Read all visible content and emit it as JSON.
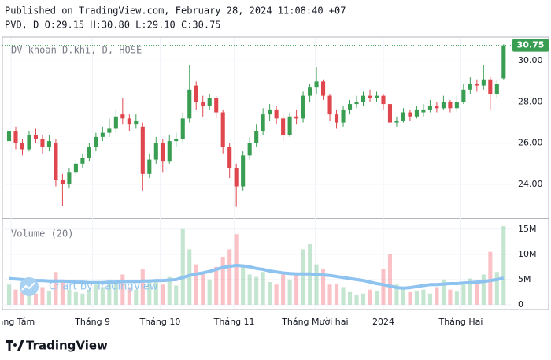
{
  "chart_data": {
    "type": "candlestick",
    "title": "Published on TradingView.com, February 28, 2024 11:08:40 +07",
    "subtitle": "PVD, D O:29.15 H:30.80 L:29.10 C:30.75",
    "legend_label": "DV khoan D.khi, D, HOSE",
    "volume_label": "Volume (20)",
    "watermark": "Chart by TradingView",
    "brand": "TradingView",
    "up_color": "#3a9e52",
    "down_color": "#e0464d",
    "volume_up_color": "rgba(58,170,100,0.3)",
    "volume_down_color": "rgba(240,80,95,0.35)",
    "ma_color": "#8ec3f0",
    "grid": true,
    "open": [
      26.1,
      26.6,
      26.0,
      25.7,
      26.4,
      26.2,
      25.8,
      26.0,
      24.2,
      24.0,
      24.6,
      25.0,
      25.3,
      25.8,
      26.3,
      26.5,
      26.7,
      27.4,
      27.2,
      26.9,
      26.8,
      24.5,
      25.2,
      26.0,
      25.1,
      26.1,
      26.2,
      27.2,
      28.8,
      28.0,
      27.8,
      28.2,
      27.5,
      25.8,
      24.8,
      23.9,
      25.4,
      26.0,
      26.6,
      27.4,
      27.6,
      27.2,
      26.4,
      27.3,
      27.2,
      28.3,
      28.7,
      29.0,
      28.3,
      27.4,
      27.0,
      27.6,
      27.9,
      28.0,
      28.3,
      28.2,
      28.3,
      27.9,
      27.0,
      27.1,
      27.5,
      27.3,
      27.5,
      27.6,
      27.8,
      27.7,
      28.0,
      27.7,
      28.0,
      28.6,
      28.9,
      28.8,
      29.1,
      28.4,
      29.15
    ],
    "high": [
      26.9,
      26.8,
      26.2,
      26.6,
      26.7,
      26.4,
      26.4,
      26.2,
      24.5,
      24.8,
      25.2,
      25.5,
      26.0,
      26.5,
      26.8,
      27.2,
      27.6,
      28.2,
      27.4,
      27.4,
      27.0,
      25.5,
      26.3,
      26.2,
      26.4,
      26.5,
      27.5,
      29.8,
      29.0,
      28.3,
      28.4,
      28.3,
      27.6,
      26.0,
      25.0,
      25.6,
      26.3,
      26.9,
      27.7,
      27.9,
      27.8,
      27.4,
      27.5,
      27.6,
      28.5,
      28.9,
      29.7,
      29.1,
      28.4,
      27.6,
      27.8,
      28.1,
      28.3,
      28.5,
      28.6,
      28.5,
      28.4,
      27.9,
      27.3,
      27.7,
      27.6,
      27.8,
      27.9,
      28.1,
      28.0,
      28.3,
      28.1,
      28.3,
      28.9,
      29.2,
      29.1,
      29.8,
      29.2,
      29.1,
      30.8
    ],
    "low": [
      25.9,
      25.7,
      25.4,
      25.6,
      26.0,
      25.5,
      25.6,
      23.9,
      22.95,
      23.8,
      24.4,
      24.8,
      25.1,
      25.6,
      26.1,
      26.3,
      26.5,
      26.9,
      26.6,
      26.7,
      23.7,
      24.3,
      25.0,
      24.6,
      25.0,
      25.8,
      26.0,
      27.0,
      27.6,
      27.3,
      27.6,
      27.2,
      25.5,
      24.3,
      22.9,
      23.7,
      25.2,
      25.8,
      26.4,
      27.1,
      26.9,
      26.1,
      26.3,
      26.9,
      27.0,
      28.0,
      28.4,
      28.1,
      27.1,
      26.7,
      26.8,
      27.4,
      27.7,
      27.8,
      28.0,
      28.0,
      27.6,
      26.6,
      26.8,
      27.0,
      27.1,
      27.2,
      27.3,
      27.5,
      27.5,
      27.6,
      27.5,
      27.5,
      27.9,
      28.4,
      28.5,
      28.6,
      27.6,
      28.2,
      29.1
    ],
    "close": [
      26.6,
      26.0,
      25.7,
      26.4,
      26.2,
      25.8,
      26.1,
      24.2,
      24.0,
      24.6,
      25.0,
      25.3,
      25.8,
      26.3,
      26.5,
      26.7,
      27.3,
      27.2,
      26.9,
      27.1,
      24.5,
      25.2,
      26.0,
      25.1,
      26.1,
      26.2,
      27.2,
      28.6,
      28.0,
      27.8,
      28.2,
      27.5,
      25.8,
      24.8,
      23.9,
      25.4,
      26.0,
      26.6,
      27.4,
      27.6,
      27.2,
      26.4,
      27.3,
      27.2,
      28.3,
      28.7,
      29.0,
      28.3,
      27.4,
      27.0,
      27.6,
      27.9,
      28.0,
      28.3,
      28.2,
      28.3,
      27.9,
      27.0,
      27.1,
      27.5,
      27.3,
      27.6,
      27.6,
      27.8,
      27.7,
      28.0,
      27.7,
      28.0,
      28.6,
      28.9,
      28.8,
      29.1,
      28.4,
      28.9,
      30.75
    ],
    "volume": [
      4,
      3,
      2.5,
      3,
      2.2,
      3.5,
      2.8,
      6.5,
      5,
      3,
      2.5,
      2.2,
      3,
      4,
      3.5,
      5,
      4.2,
      6,
      3.5,
      3,
      7,
      5,
      4.5,
      4,
      5.5,
      3.8,
      15,
      11,
      8,
      6,
      5,
      7.5,
      9.5,
      11,
      14,
      8,
      6,
      5.5,
      6.5,
      4.5,
      4,
      6,
      5,
      6.2,
      11,
      12,
      8,
      7,
      4,
      4.2,
      3.5,
      2.5,
      2,
      2.2,
      3,
      2.8,
      7,
      10,
      4,
      3.2,
      2.5,
      2.8,
      3,
      2.2,
      3.5,
      5,
      3,
      2.6,
      4,
      5.2,
      4.2,
      6,
      10.5,
      6.5,
      15.6
    ],
    "volume_ma": [
      5.2,
      5.1,
      5.0,
      4.9,
      4.8,
      4.8,
      4.7,
      4.7,
      4.7,
      4.6,
      4.5,
      4.5,
      4.4,
      4.4,
      4.4,
      4.5,
      4.5,
      4.6,
      4.6,
      4.6,
      4.7,
      4.7,
      4.8,
      4.8,
      4.9,
      5.0,
      5.4,
      5.8,
      6.1,
      6.3,
      6.6,
      7.0,
      7.4,
      7.6,
      7.8,
      7.7,
      7.5,
      7.2,
      7.0,
      6.7,
      6.5,
      6.3,
      6.2,
      6.1,
      6.1,
      6.1,
      6.0,
      5.9,
      5.8,
      5.6,
      5.4,
      5.2,
      5.0,
      4.8,
      4.5,
      4.2,
      4.0,
      3.7,
      3.4,
      3.3,
      3.4,
      3.6,
      3.8,
      4.0,
      4.0,
      4.1,
      4.2,
      4.2,
      4.3,
      4.4,
      4.5,
      4.6,
      4.8,
      5.0,
      5.3
    ],
    "xlim": [
      -1,
      75.2
    ],
    "xticks": [
      {
        "value": 0.3,
        "label": "Tháng Tám"
      },
      {
        "value": 12.5,
        "label": "Tháng 9"
      },
      {
        "value": 22.6,
        "label": "Tháng 10"
      },
      {
        "value": 33.7,
        "label": "Tháng 11"
      },
      {
        "value": 45.8,
        "label": "Tháng Mười hai"
      },
      {
        "value": 56.0,
        "label": "2024"
      },
      {
        "value": 67.6,
        "label": "Tháng Hai"
      }
    ],
    "ylim": [
      22.35,
      31.12
    ],
    "yticks": [
      {
        "value": 24,
        "label": "24.00"
      },
      {
        "value": 26,
        "label": "26.00"
      },
      {
        "value": 28,
        "label": "28.00"
      },
      {
        "value": 30,
        "label": "30.00"
      }
    ],
    "y2lim": [
      -0.8,
      17
    ],
    "y2ticks": [
      0,
      {
        "value": 5,
        "label": "5M"
      },
      {
        "value": 10,
        "label": "10M"
      },
      {
        "value": 15,
        "label": "15M"
      }
    ]
  }
}
